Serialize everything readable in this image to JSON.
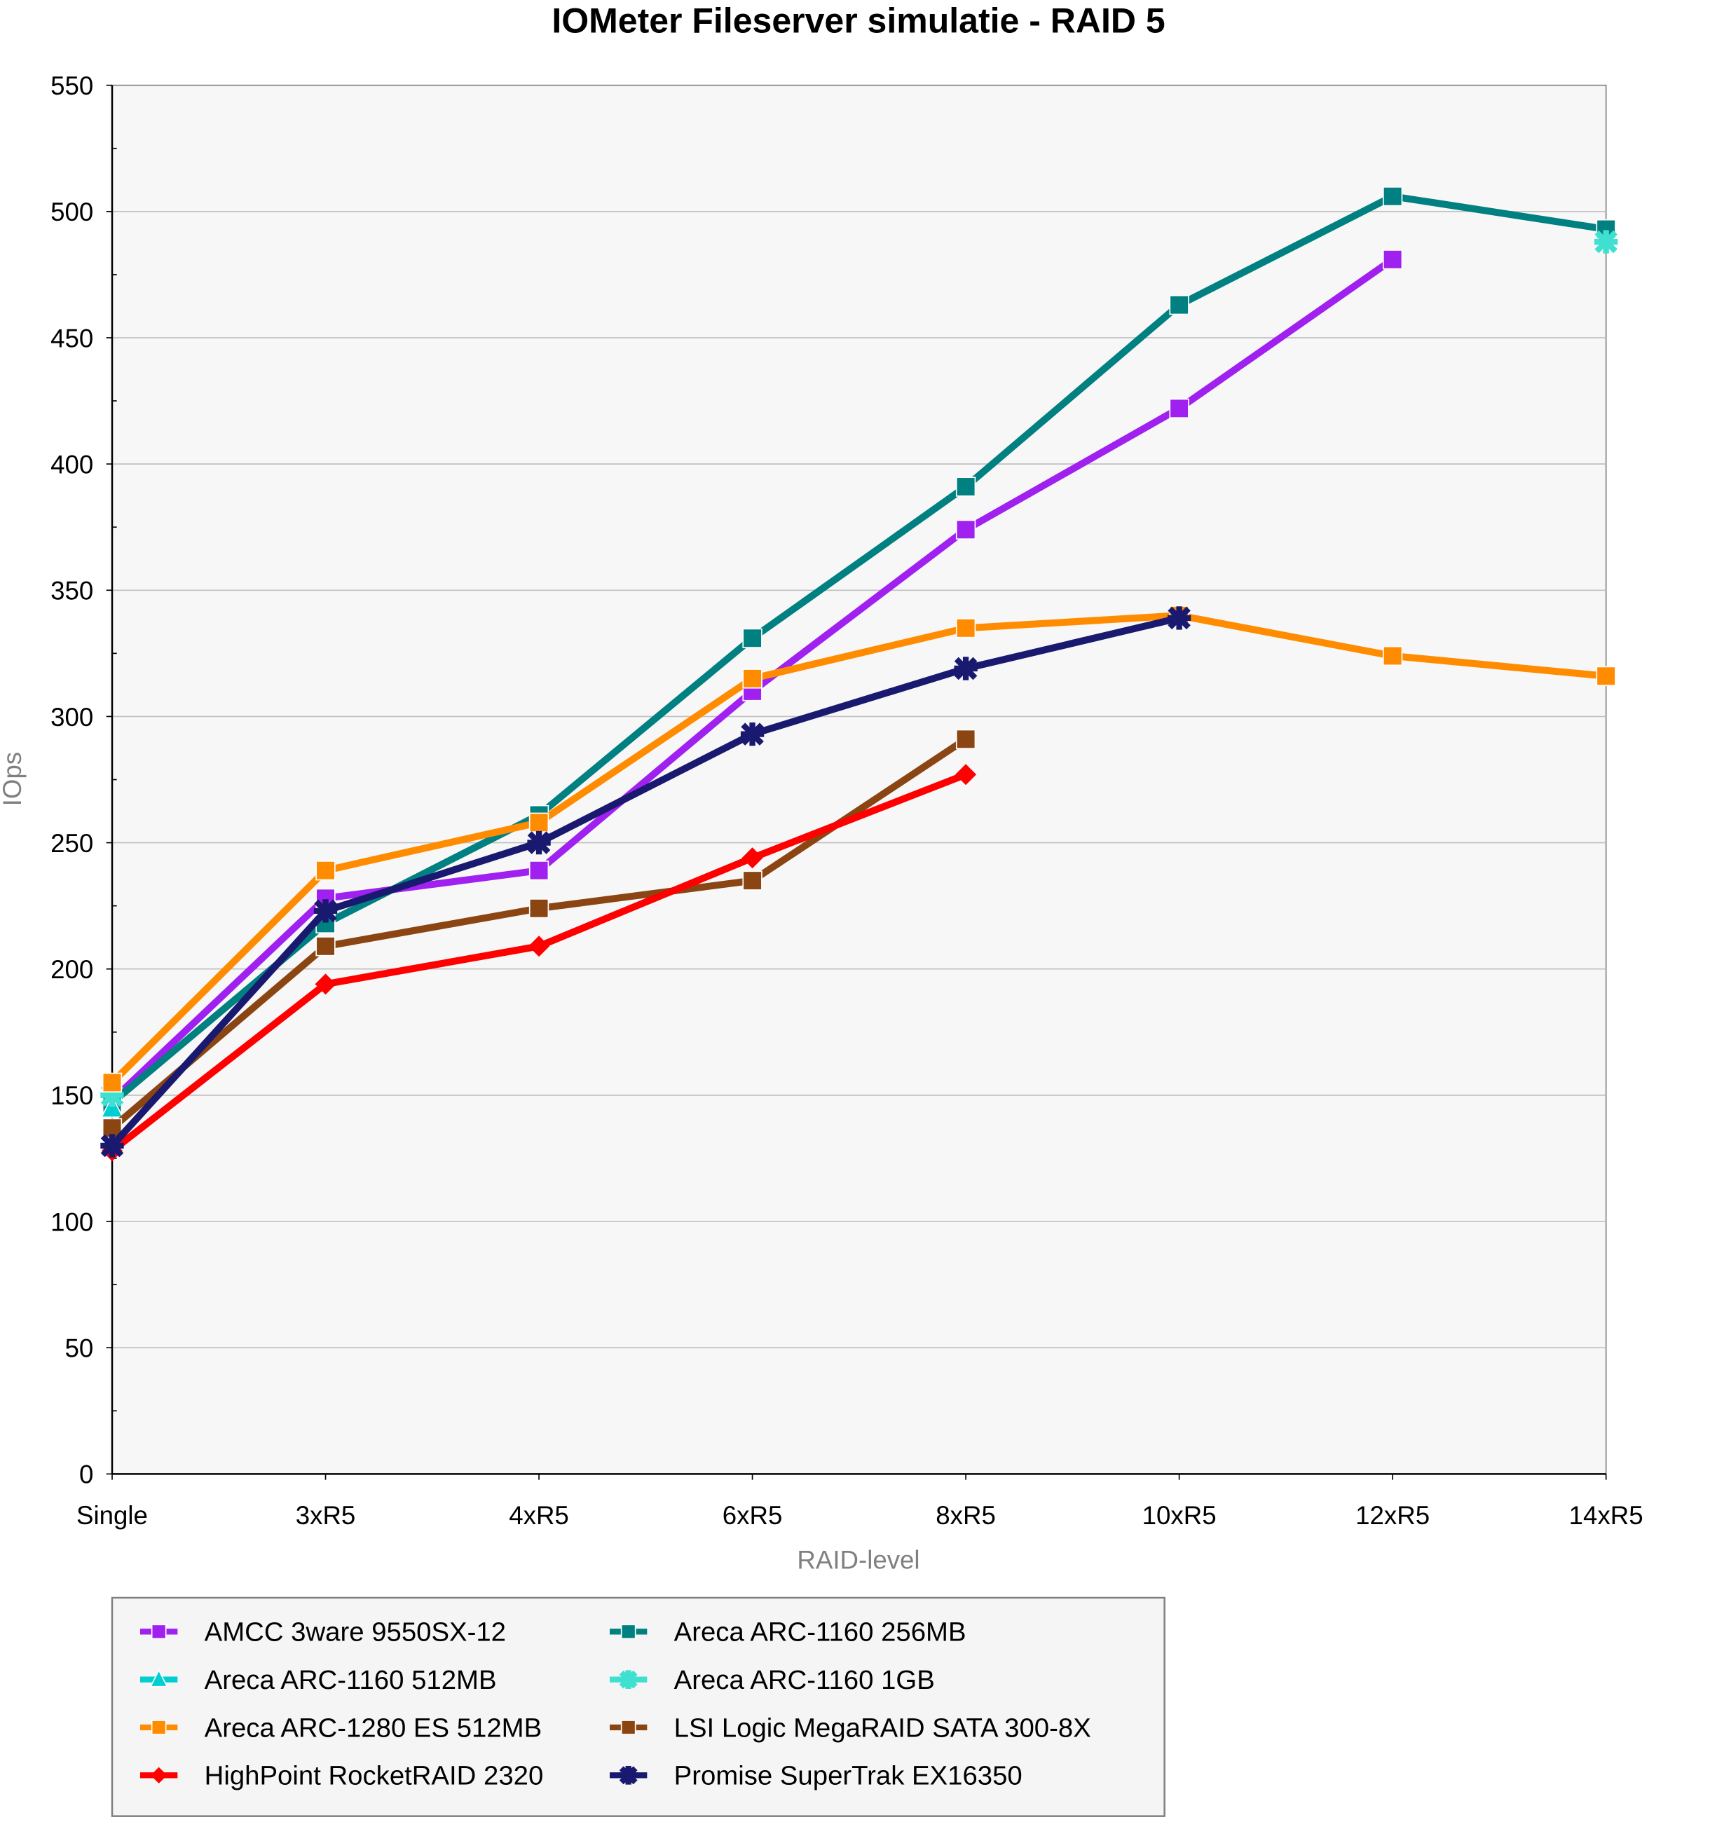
{
  "chart_data": {
    "type": "line",
    "title": "IOMeter Fileserver simulatie - RAID 5",
    "xlabel": "RAID-level",
    "ylabel": "IOps",
    "ylim": [
      0,
      550
    ],
    "yticks": [
      "0",
      "50",
      "100",
      "150",
      "200",
      "250",
      "300",
      "350",
      "400",
      "450",
      "500",
      "550"
    ],
    "categories": [
      "Single",
      "3xR5",
      "4xR5",
      "6xR5",
      "8xR5",
      "10xR5",
      "12xR5",
      "14xR5"
    ],
    "grid": true,
    "legend_position": "bottom",
    "series": [
      {
        "name": "AMCC 3ware 9550SX-12",
        "color": "#A020F0",
        "marker": "square",
        "values": [
          148,
          228,
          239,
          310,
          374,
          422,
          481,
          null
        ]
      },
      {
        "name": "Areca ARC-1160 256MB",
        "color": "#008080",
        "marker": "square",
        "values": [
          147,
          218,
          261,
          331,
          391,
          463,
          506,
          493
        ]
      },
      {
        "name": "Areca ARC-1160 512MB",
        "color": "#00CED1",
        "marker": "triangle",
        "values": [
          145,
          null,
          null,
          null,
          null,
          null,
          null,
          null
        ]
      },
      {
        "name": "Areca ARC-1160 1GB",
        "color": "#40E0D0",
        "marker": "cross",
        "values": [
          150,
          null,
          null,
          null,
          null,
          null,
          null,
          488
        ]
      },
      {
        "name": "Areca ARC-1280 ES 512MB",
        "color": "#FF8C00",
        "marker": "square",
        "values": [
          155,
          239,
          258,
          315,
          335,
          340,
          324,
          316
        ]
      },
      {
        "name": "LSI Logic MegaRAID SATA 300-8X",
        "color": "#8B4513",
        "marker": "square",
        "values": [
          137,
          209,
          224,
          235,
          291,
          null,
          null,
          null
        ]
      },
      {
        "name": "HighPoint RocketRAID 2320",
        "color": "#FF0000",
        "marker": "diamond",
        "values": [
          128,
          194,
          209,
          244,
          277,
          null,
          null,
          null
        ]
      },
      {
        "name": "Promise SuperTrak EX16350",
        "color": "#191970",
        "marker": "star",
        "values": [
          130,
          223,
          250,
          293,
          319,
          339,
          null,
          null
        ]
      }
    ]
  }
}
